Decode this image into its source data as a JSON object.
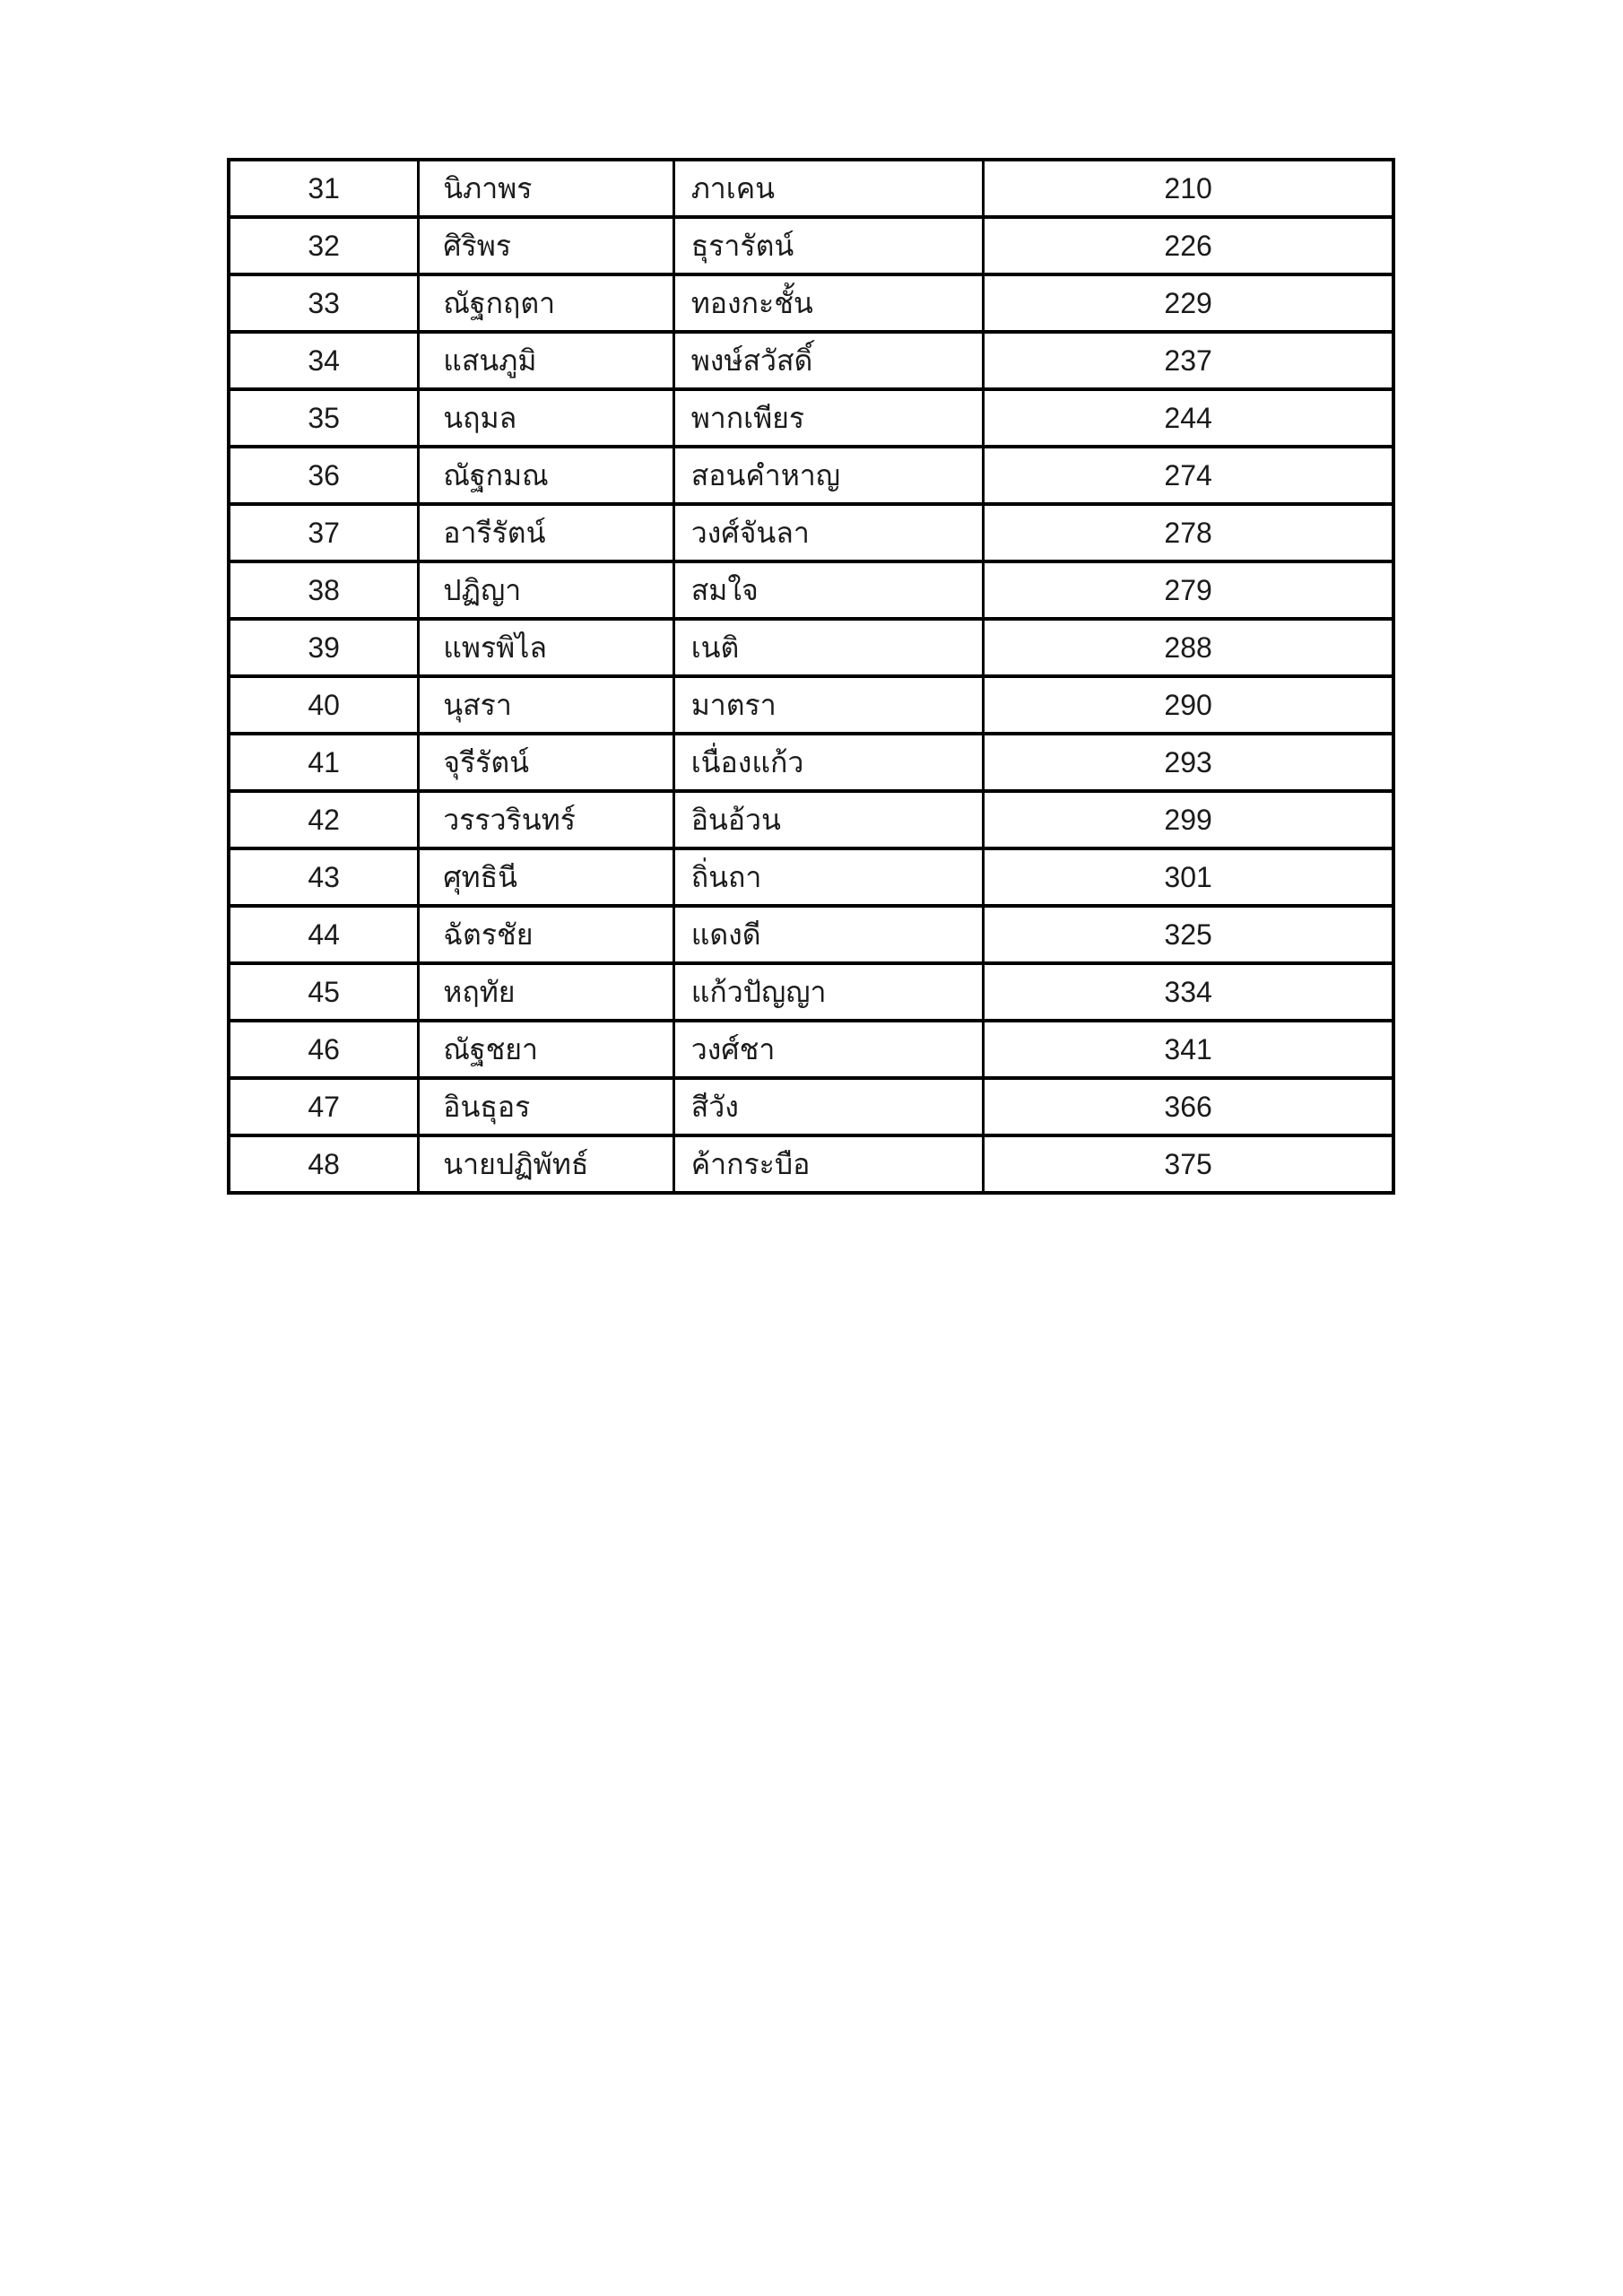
{
  "page": {
    "background_color": "#ffffff",
    "border_color": "#000000",
    "text_color": "#1b1b1b"
  },
  "table": {
    "rows": [
      {
        "no": "31",
        "first_name": "นิภาพร",
        "last_name": "ภาเคน",
        "number": "210"
      },
      {
        "no": "32",
        "first_name": "ศิริพร",
        "last_name": "ธุรารัตน์",
        "number": "226"
      },
      {
        "no": "33",
        "first_name": "ณัฐกฤตา",
        "last_name": "ทองกะชั้น",
        "number": "229"
      },
      {
        "no": "34",
        "first_name": "แสนภูมิ",
        "last_name": "พงษ์สวัสดิ์",
        "number": "237"
      },
      {
        "no": "35",
        "first_name": "นฤมล",
        "last_name": "พากเพียร",
        "number": "244"
      },
      {
        "no": "36",
        "first_name": "ณัฐกมณ",
        "last_name": "สอนคำหาญ",
        "number": "274"
      },
      {
        "no": "37",
        "first_name": "อารีรัตน์",
        "last_name": "วงศ์จันลา",
        "number": "278"
      },
      {
        "no": "38",
        "first_name": "ปฏิญา",
        "last_name": "สมใจ",
        "number": "279"
      },
      {
        "no": "39",
        "first_name": "แพรพิไล",
        "last_name": "เนติ",
        "number": "288"
      },
      {
        "no": "40",
        "first_name": "นุสรา",
        "last_name": "มาตรา",
        "number": "290"
      },
      {
        "no": "41",
        "first_name": "จุรีรัตน์",
        "last_name": "เนื่องแก้ว",
        "number": "293"
      },
      {
        "no": "42",
        "first_name": "วรรวรินทร์",
        "last_name": "อินอ้วน",
        "number": "299"
      },
      {
        "no": "43",
        "first_name": "ศุทธินี",
        "last_name": "ถิ่นถา",
        "number": "301"
      },
      {
        "no": "44",
        "first_name": "ฉัตรชัย",
        "last_name": "แดงดี",
        "number": "325"
      },
      {
        "no": "45",
        "first_name": "หฤทัย",
        "last_name": "แก้วปัญญา",
        "number": "334"
      },
      {
        "no": "46",
        "first_name": "ณัฐชยา",
        "last_name": "วงศ์ชา",
        "number": "341"
      },
      {
        "no": "47",
        "first_name": "อินธุอร",
        "last_name": "สีวัง",
        "number": "366"
      },
      {
        "no": "48",
        "first_name": "นายปฏิพัทธ์",
        "last_name": "ค้ากระบือ",
        "number": "375"
      }
    ]
  }
}
